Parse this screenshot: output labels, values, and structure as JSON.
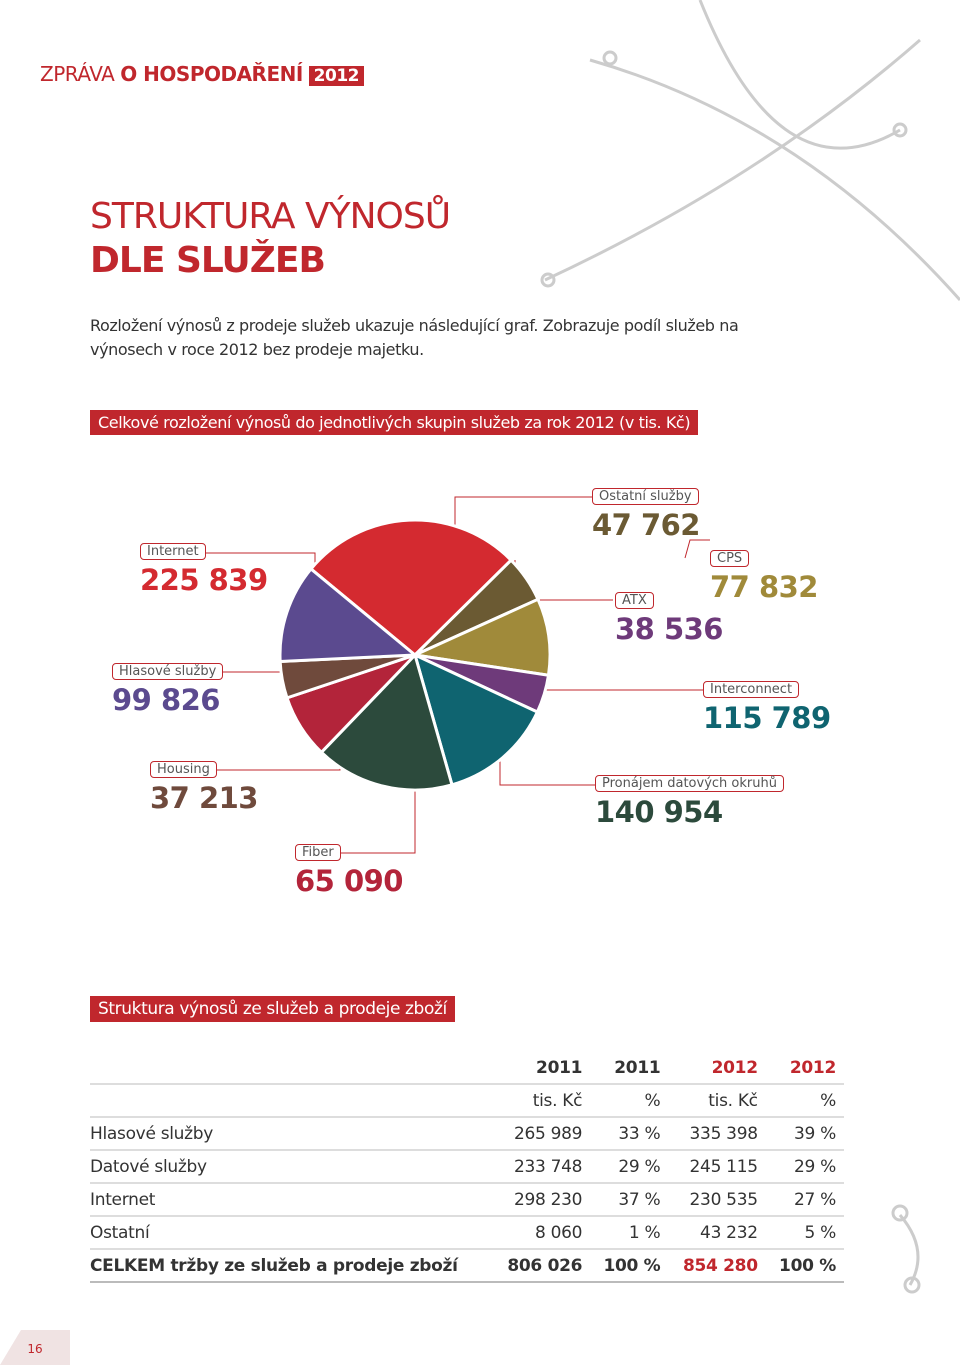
{
  "header": {
    "prefix": "ZPRÁVA",
    "bold": "O HOSPODAŘENÍ",
    "year": "2012"
  },
  "heading": {
    "line1": "STRUKTURA VÝNOSŮ",
    "line2": "DLE SLUŽEB"
  },
  "intro": "Rozložení výnosů z prodeje služeb ukazuje následující graf. Zobrazuje podíl služeb na výnosech v roce 2012 bez prodeje majetku.",
  "chart_data": {
    "type": "pie",
    "title": "Celkové rozložení výnosů do jednotlivých skupin služeb za rok 2012 (v tis. Kč)",
    "categories": [
      "Internet",
      "Ostatní služby",
      "CPS",
      "ATX",
      "Interconnect",
      "Pronájem datových okruhů",
      "Fiber",
      "Housing",
      "Hlasové služby"
    ],
    "values": [
      225839,
      47762,
      77832,
      38536,
      115789,
      140954,
      65090,
      37213,
      99826
    ],
    "value_labels": [
      "225 839",
      "47 762",
      "77 832",
      "38 536",
      "115 789",
      "140 954",
      "65 090",
      "37 213",
      "99 826"
    ],
    "colors": [
      "#d42a30",
      "#6b5a33",
      "#a08a3a",
      "#6e3a7a",
      "#0f6470",
      "#2c4a3c",
      "#b3243a",
      "#6f4a3c",
      "#5b4a8f"
    ]
  },
  "table": {
    "caption": "Struktura výnosů ze služeb a prodeje zboží",
    "header": [
      [
        "",
        "2011",
        "2011",
        "2012",
        "2012"
      ],
      [
        "",
        "tis. Kč",
        "%",
        "tis. Kč",
        "%"
      ]
    ],
    "rows": [
      [
        "Hlasové služby",
        "265 989",
        "33 %",
        "335 398",
        "39 %"
      ],
      [
        "Datové služby",
        "233 748",
        "29 %",
        "245 115",
        "29 %"
      ],
      [
        "Internet",
        "298 230",
        "37 %",
        "230 535",
        "27 %"
      ],
      [
        "Ostatní",
        "8 060",
        "1 %",
        "43 232",
        "5 %"
      ],
      [
        "CELKEM tržby ze služeb a prodeje zboží",
        "806 026",
        "100 %",
        "854 280",
        "100 %"
      ]
    ]
  },
  "page_number": "16"
}
